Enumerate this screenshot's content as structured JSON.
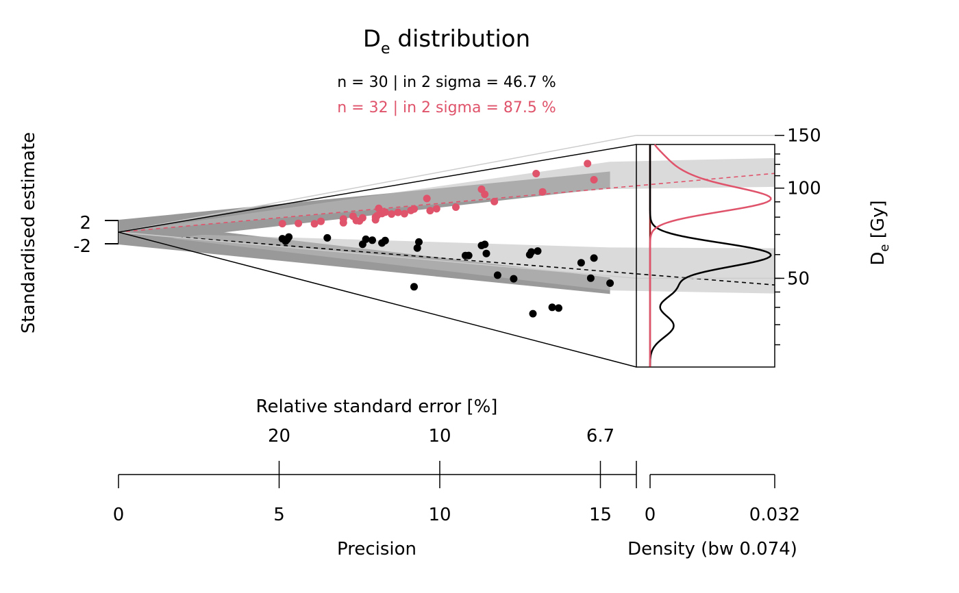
{
  "chart_data": {
    "type": "scatter",
    "subtype": "abanico",
    "title_main": "D",
    "title_sub": "e",
    "title_rest": " distribution",
    "stats": [
      {
        "label": "n = 30 | in 2 sigma = 46.7 %",
        "color": "#000000"
      },
      {
        "label": "n = 32 | in 2 sigma = 87.5 %",
        "color": "#DF536B"
      }
    ],
    "y_left_label": "Standardised estimate",
    "y_left_ticks": [
      "2",
      "-2"
    ],
    "y_right_label_main": "D",
    "y_right_label_sub": "e",
    "y_right_label_rest": " [Gy]",
    "y_right_ticks": [
      150,
      100,
      50
    ],
    "y_right_scale": "log",
    "rse_label": "Relative standard error [%]",
    "rse_ticks": [
      "20",
      "10",
      "6.7"
    ],
    "precision_label": "Precision",
    "precision_ticks": [
      0,
      5,
      10,
      15
    ],
    "precision_range": [
      0,
      16.1
    ],
    "density_label": "Density (bw 0.074)",
    "density_ticks": [
      "0",
      "0.032"
    ],
    "density_range": [
      0,
      0.032
    ],
    "series": [
      {
        "color": "#000000",
        "central_value": 47.5,
        "band": [
          44.5,
          63
        ],
        "points": [
          [
            5.1,
            60.8
          ],
          [
            5.2,
            57.6
          ],
          [
            5.25,
            60.1
          ],
          [
            5.3,
            63.6
          ],
          [
            6.5,
            63.9
          ],
          [
            7.6,
            58.5
          ],
          [
            7.7,
            63.6
          ],
          [
            7.9,
            62.8
          ],
          [
            8.2,
            60.5
          ],
          [
            8.3,
            62.9
          ],
          [
            9.2,
            34.2
          ],
          [
            9.3,
            57.7
          ],
          [
            9.35,
            62.6
          ],
          [
            10.8,
            54.5
          ],
          [
            10.9,
            54.7
          ],
          [
            11.3,
            61.6
          ],
          [
            11.4,
            62.4
          ],
          [
            11.45,
            56.6
          ],
          [
            11.8,
            45.4
          ],
          [
            12.3,
            44.6
          ],
          [
            12.8,
            57.3
          ],
          [
            12.85,
            58.9
          ],
          [
            12.9,
            32.6
          ],
          [
            13.05,
            59.6
          ],
          [
            13.5,
            35.8
          ],
          [
            13.7,
            35.9
          ],
          [
            14.4,
            54.8
          ],
          [
            14.7,
            48.4
          ],
          [
            14.8,
            57.4
          ],
          [
            15.3,
            47.2
          ]
        ]
      },
      {
        "color": "#DF536B",
        "central_value": 112,
        "band": [
          101,
          126
        ],
        "points": [
          [
            5.1,
            87.6
          ],
          [
            5.6,
            86.5
          ],
          [
            6.1,
            84.5
          ],
          [
            6.3,
            88.2
          ],
          [
            7.0,
            84.2
          ],
          [
            7.0,
            90.1
          ],
          [
            7.3,
            93.6
          ],
          [
            7.4,
            86.5
          ],
          [
            7.5,
            85.8
          ],
          [
            7.6,
            90.0
          ],
          [
            8.0,
            86.3
          ],
          [
            8.0,
            90.0
          ],
          [
            8.05,
            91.8
          ],
          [
            8.1,
            102.5
          ],
          [
            8.2,
            94.3
          ],
          [
            8.3,
            96.0
          ],
          [
            8.5,
            92.8
          ],
          [
            8.7,
            94.5
          ],
          [
            8.9,
            92.1
          ],
          [
            9.1,
            95.7
          ],
          [
            9.2,
            97.3
          ],
          [
            9.6,
            110.0
          ],
          [
            9.7,
            93.8
          ],
          [
            9.9,
            95.5
          ],
          [
            10.5,
            95.7
          ],
          [
            11.3,
            114.0
          ],
          [
            11.4,
            107.5
          ],
          [
            11.7,
            98.5
          ],
          [
            13.0,
            124.5
          ],
          [
            13.2,
            104.0
          ],
          [
            14.6,
            127.5
          ],
          [
            14.8,
            110.5
          ]
        ]
      }
    ]
  }
}
